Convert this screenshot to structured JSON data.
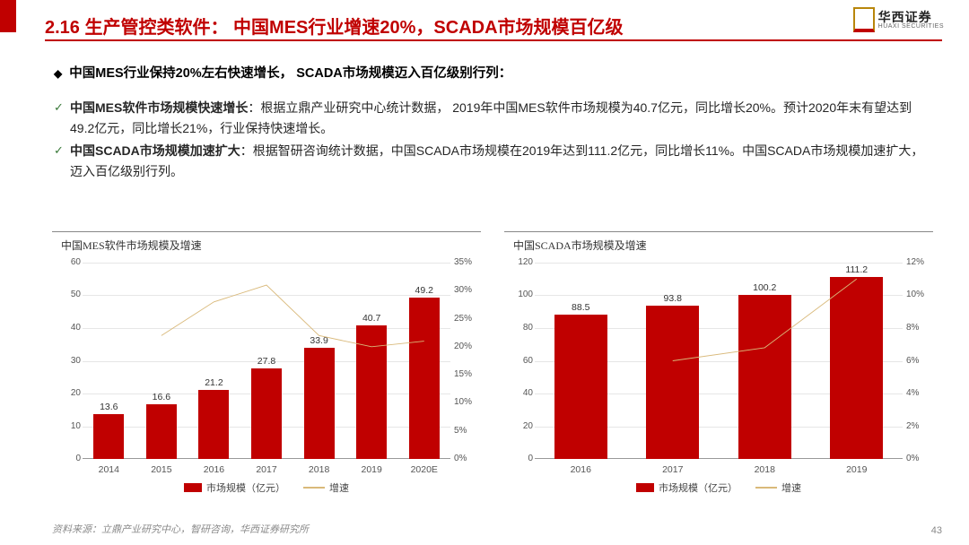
{
  "header": {
    "title": "2.16 生产管控类软件： 中国MES行业增速20%，SCADA市场规模百亿级"
  },
  "logo": {
    "cn": "华西证券",
    "en": "HUAXI SECURITIES"
  },
  "lead": "中国MES行业保持20%左右快速增长， SCADA市场规模迈入百亿级别行列：",
  "bullets": [
    {
      "bold": "中国MES软件市场规模快速增长",
      "text": "：根据立鼎产业研究中心统计数据， 2019年中国MES软件市场规模为40.7亿元，同比增长20%。预计2020年末有望达到49.2亿元，同比增长21%，行业保持快速增长。"
    },
    {
      "bold": "中国SCADA市场规模加速扩大",
      "text": "：根据智研咨询统计数据，中国SCADA市场规模在2019年达到111.2亿元，同比增长11%。中国SCADA市场规模加速扩大，迈入百亿级别行列。"
    }
  ],
  "chart1": {
    "title": "中国MES软件市场规模及增速",
    "type": "bar+line",
    "bar_color": "#c00000",
    "line_color": "#d9b97a",
    "background_color": "#ffffff",
    "grid_color": "#e6e6e6",
    "categories": [
      "2014",
      "2015",
      "2016",
      "2017",
      "2018",
      "2019",
      "2020E"
    ],
    "values": [
      13.6,
      16.6,
      21.2,
      27.8,
      33.9,
      40.7,
      49.2
    ],
    "ylim": [
      0,
      60
    ],
    "ytick_step": 10,
    "growth_pct": [
      null,
      22,
      28,
      31,
      22,
      20,
      21
    ],
    "y2lim": [
      0,
      35
    ],
    "y2tick_step": 5,
    "legend_bar": "市场规模（亿元）",
    "legend_line": "增速",
    "label_fontsize": 10.5
  },
  "chart2": {
    "title": "中国SCADA市场规模及增速",
    "type": "bar+line",
    "bar_color": "#c00000",
    "line_color": "#d9b97a",
    "background_color": "#ffffff",
    "grid_color": "#e6e6e6",
    "categories": [
      "2016",
      "2017",
      "2018",
      "2019"
    ],
    "values": [
      88.5,
      93.8,
      100.2,
      111.2
    ],
    "ylim": [
      0,
      120
    ],
    "ytick_step": 20,
    "growth_pct": [
      null,
      6,
      6.8,
      11
    ],
    "y2lim": [
      0,
      12
    ],
    "y2tick_step": 2,
    "legend_bar": "市场规模（亿元）",
    "legend_line": "增速",
    "label_fontsize": 10.5
  },
  "source": "资料来源：立鼎产业研究中心，智研咨询，华西证券研究所",
  "page": "43"
}
